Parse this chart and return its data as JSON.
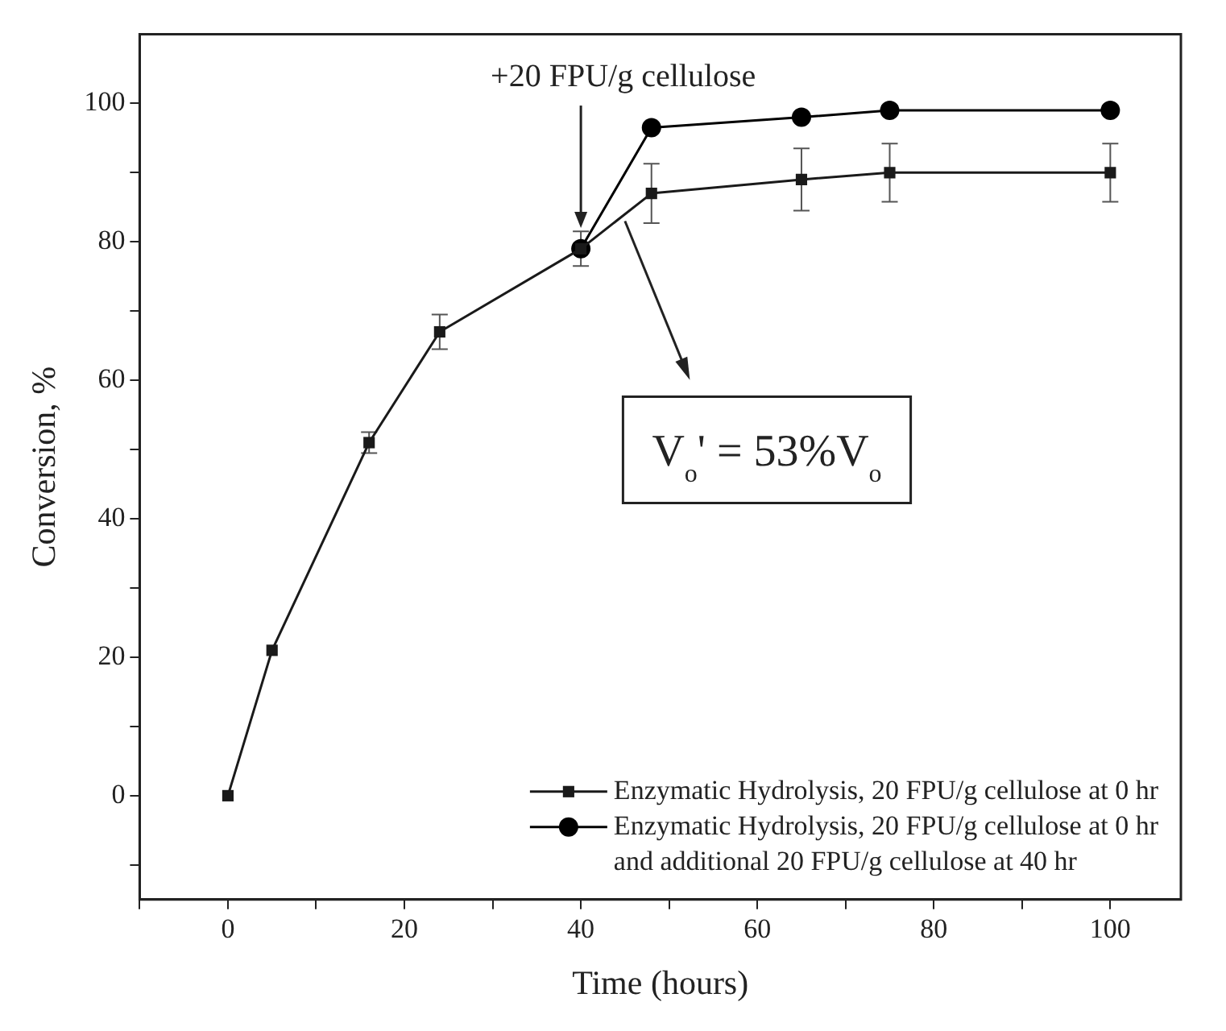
{
  "chart_data": {
    "type": "line",
    "xlabel": "Time (hours)",
    "ylabel": "Conversion, %",
    "xlim": [
      -10,
      108
    ],
    "ylim": [
      -15,
      110
    ],
    "xticks": [
      {
        "value": -10,
        "label": null
      },
      0,
      {
        "value": 10,
        "label": null
      },
      20,
      {
        "value": 30,
        "label": null
      },
      40,
      {
        "value": 50,
        "label": null
      },
      60,
      {
        "value": 70,
        "label": null
      },
      80,
      {
        "value": 90,
        "label": null
      },
      100
    ],
    "yticks": [
      {
        "value": -10,
        "label": null
      },
      0,
      {
        "value": 10,
        "label": null
      },
      20,
      {
        "value": 30,
        "label": null
      },
      40,
      {
        "value": 50,
        "label": null
      },
      60,
      {
        "value": 70,
        "label": null
      },
      80,
      {
        "value": 90,
        "label": null
      },
      100
    ],
    "grid": false,
    "legend": "bottom right",
    "line_style": "solid",
    "series": [
      {
        "name": "Enzymatic Hydrolysis, 20 FPU/g cellulose at 0 hr",
        "color": "#1a1a1a",
        "marker": "square",
        "x": [
          0,
          5,
          16,
          24,
          40,
          48,
          65,
          75,
          100
        ],
        "values": [
          0,
          21,
          51,
          67,
          79,
          87,
          89,
          90,
          90
        ],
        "errors": [
          null,
          null,
          1.5,
          2.5,
          2.5,
          4.3,
          4.5,
          4.2,
          4.2
        ]
      },
      {
        "name": "Enzymatic Hydrolysis, 20 FPU/g cellulose at 0 hr\nand additional 20 FPU/g cellulose at 40 hr",
        "color": "#000000",
        "marker": "circle",
        "x": [
          40,
          48,
          65,
          75,
          100
        ],
        "values": [
          79,
          96.5,
          98,
          99,
          99
        ]
      }
    ],
    "annotations": [
      {
        "text": "+20 FPU/g cellulose",
        "x": 40,
        "y": 82
      },
      "V$_{o}$' = 53%V$_{o}$"
    ]
  }
}
